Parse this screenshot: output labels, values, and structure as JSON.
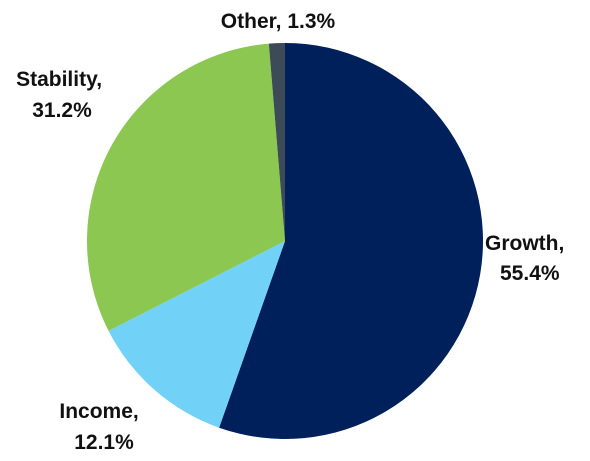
{
  "chart_data": {
    "type": "pie",
    "slices": [
      {
        "name": "Growth",
        "value": 55.4,
        "label_line1": "Growth,",
        "label_line2": "55.4%",
        "color": "#00205B"
      },
      {
        "name": "Income",
        "value": 12.1,
        "label_line1": "Income,",
        "label_line2": "12.1%",
        "color": "#71D1F6"
      },
      {
        "name": "Stability",
        "value": 31.2,
        "label_line1": "Stability,",
        "label_line2": "31.2%",
        "color": "#8BC751"
      },
      {
        "name": "Other",
        "value": 1.3,
        "label_line1": "Other, 1.3%",
        "label_line2": "",
        "color": "#3D4A57"
      }
    ],
    "start": "12 o'clock",
    "direction": "clockwise",
    "title": "",
    "legend": "none"
  }
}
